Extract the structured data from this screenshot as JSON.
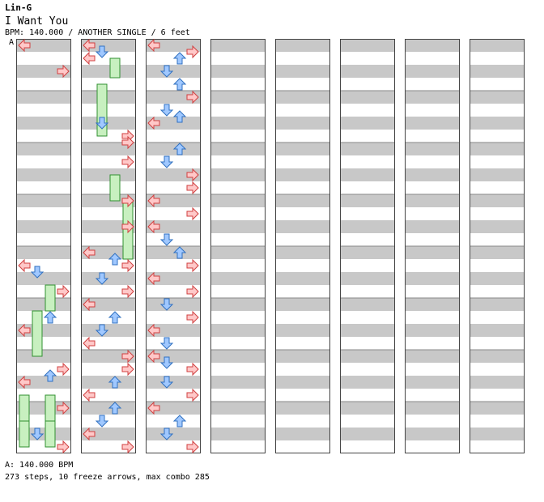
{
  "header": {
    "artist": "Lin-G",
    "title": "I Want You",
    "info": "BPM: 140.000 / ANOTHER SINGLE / 6 feet",
    "bpm_marker": "A"
  },
  "footer": {
    "bpm_line": "A: 140.000 BPM",
    "stats_line": "273 steps, 10 freeze arrows, max combo 285"
  },
  "colors": {
    "stripe": "#c8c8c8",
    "arrow_red": "#ffc8c8",
    "arrow_red_edge": "#d04040",
    "arrow_blue": "#a0c8ff",
    "arrow_blue_edge": "#3070c0",
    "freeze_fill": "#c8f0c0",
    "freeze_edge": "#309030"
  },
  "chart_data": {
    "type": "step-chart",
    "lanes": [
      "left",
      "down",
      "up",
      "right"
    ],
    "beats_per_column": 32,
    "columns": 8,
    "freeze_arrows": [
      {
        "lane": "up",
        "start_beat": 33,
        "end_beat": 34.5
      },
      {
        "lane": "down",
        "start_beat": 35,
        "end_beat": 39
      },
      {
        "lane": "up",
        "start_beat": 42,
        "end_beat": 44
      },
      {
        "lane": "right",
        "start_beat": 44,
        "end_beat": 48.5
      },
      {
        "lane": "up",
        "start_beat": 18.5,
        "end_beat": 20.5
      },
      {
        "lane": "down",
        "start_beat": 20.5,
        "end_beat": 24
      },
      {
        "lane": "left",
        "start_beat": 27,
        "end_beat": 29
      },
      {
        "lane": "up",
        "start_beat": 29,
        "end_beat": 31
      },
      {
        "lane": "up",
        "start_beat": 27,
        "end_beat": 29
      },
      {
        "lane": "left",
        "start_beat": 29,
        "end_beat": 31
      }
    ],
    "steps": [
      [
        0,
        "left"
      ],
      [
        2,
        "right"
      ],
      [
        17,
        "left"
      ],
      [
        17.5,
        "down"
      ],
      [
        19,
        "right"
      ],
      [
        21,
        "up"
      ],
      [
        22,
        "left"
      ],
      [
        25,
        "right"
      ],
      [
        25.5,
        "up"
      ],
      [
        26,
        "left"
      ],
      [
        28,
        "right"
      ],
      [
        30,
        "down"
      ],
      [
        31,
        "right"
      ],
      [
        32,
        "left"
      ],
      [
        32.5,
        "down"
      ],
      [
        33,
        "left"
      ],
      [
        38,
        "down"
      ],
      [
        39,
        "right"
      ],
      [
        39.5,
        "right"
      ],
      [
        41,
        "right"
      ],
      [
        44,
        "right"
      ],
      [
        46,
        "right"
      ],
      [
        48,
        "left"
      ],
      [
        48.5,
        "up"
      ],
      [
        49,
        "right"
      ],
      [
        50,
        "down"
      ],
      [
        51,
        "right"
      ],
      [
        52,
        "left"
      ],
      [
        53,
        "up"
      ],
      [
        54,
        "down"
      ],
      [
        55,
        "left"
      ],
      [
        56,
        "right"
      ],
      [
        57,
        "right"
      ],
      [
        58,
        "up"
      ],
      [
        59,
        "left"
      ],
      [
        60,
        "up"
      ],
      [
        61,
        "down"
      ],
      [
        62,
        "left"
      ],
      [
        63,
        "right"
      ],
      [
        64,
        "left"
      ],
      [
        64.5,
        "right"
      ],
      [
        65,
        "up"
      ],
      [
        66,
        "down"
      ],
      [
        67,
        "up"
      ],
      [
        68,
        "right"
      ],
      [
        69,
        "down"
      ],
      [
        69.5,
        "up"
      ],
      [
        70,
        "left"
      ],
      [
        72,
        "up"
      ],
      [
        73,
        "down"
      ],
      [
        74,
        "right"
      ],
      [
        75,
        "right"
      ],
      [
        76,
        "left"
      ],
      [
        77,
        "right"
      ],
      [
        78,
        "left"
      ],
      [
        79,
        "down"
      ],
      [
        80,
        "up"
      ],
      [
        81,
        "right"
      ],
      [
        82,
        "left"
      ],
      [
        83,
        "right"
      ],
      [
        84,
        "down"
      ],
      [
        85,
        "right"
      ],
      [
        86,
        "left"
      ],
      [
        87,
        "down"
      ],
      [
        88,
        "left"
      ],
      [
        88.5,
        "down"
      ],
      [
        89,
        "right"
      ],
      [
        90,
        "down"
      ],
      [
        91,
        "right"
      ],
      [
        92,
        "left"
      ],
      [
        93,
        "up"
      ],
      [
        94,
        "down"
      ],
      [
        95,
        "right"
      ]
    ]
  }
}
